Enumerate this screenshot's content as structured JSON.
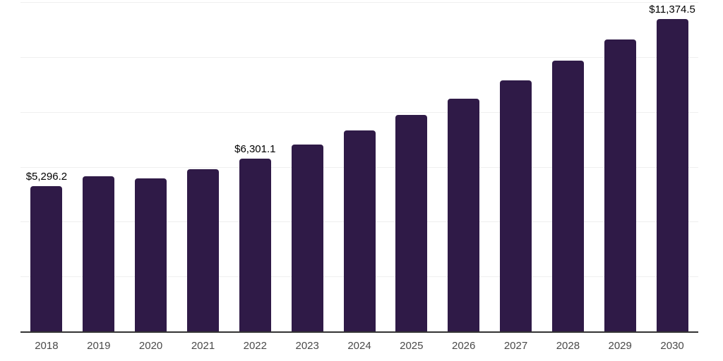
{
  "chart_data": {
    "type": "bar",
    "categories": [
      "2018",
      "2019",
      "2020",
      "2021",
      "2022",
      "2023",
      "2024",
      "2025",
      "2026",
      "2027",
      "2028",
      "2029",
      "2030"
    ],
    "values": [
      5296.2,
      5650,
      5570,
      5920,
      6301.1,
      6800,
      7330,
      7900,
      8490,
      9150,
      9870,
      10630,
      11374.5
    ],
    "bar_labels": [
      "$5,296.2",
      "",
      "",
      "",
      "$6,301.1",
      "",
      "",
      "",
      "",
      "",
      "",
      "",
      "$11,374.5"
    ],
    "title": "",
    "xlabel": "",
    "ylabel": "",
    "ylim": [
      0,
      12000
    ],
    "gridline_interval": 2000,
    "grid": "horizontal-only",
    "legend": "none",
    "bar_color": "#2f1a47",
    "axis_line_color": "#333333",
    "gridline_color": "#efefef",
    "tick_label_color": "#4a4a4a",
    "value_label_color": "#000000"
  }
}
